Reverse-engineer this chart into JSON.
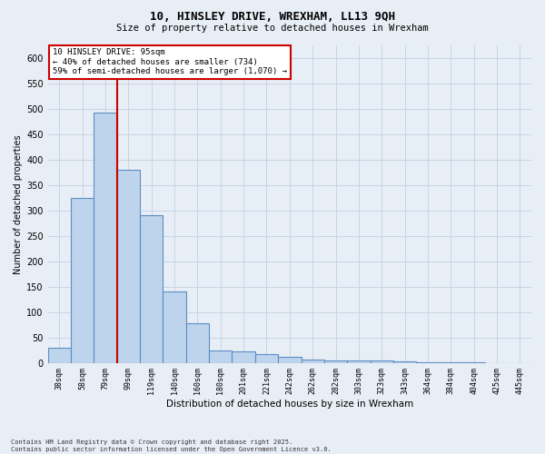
{
  "title1": "10, HINSLEY DRIVE, WREXHAM, LL13 9QH",
  "title2": "Size of property relative to detached houses in Wrexham",
  "xlabel": "Distribution of detached houses by size in Wrexham",
  "ylabel": "Number of detached properties",
  "categories": [
    "38sqm",
    "58sqm",
    "79sqm",
    "99sqm",
    "119sqm",
    "140sqm",
    "160sqm",
    "180sqm",
    "201sqm",
    "221sqm",
    "242sqm",
    "262sqm",
    "282sqm",
    "303sqm",
    "323sqm",
    "343sqm",
    "364sqm",
    "384sqm",
    "404sqm",
    "425sqm",
    "445sqm"
  ],
  "values": [
    30,
    325,
    493,
    380,
    290,
    140,
    78,
    25,
    22,
    17,
    12,
    7,
    5,
    4,
    4,
    2,
    1,
    1,
    1,
    0,
    0
  ],
  "bar_color": "#bed3ec",
  "bar_edge_color": "#5b8ec4",
  "grid_color": "#c8d4e4",
  "bg_color": "#e8eef6",
  "red_line_x": 2.5,
  "annotation_text": "10 HINSLEY DRIVE: 95sqm\n← 40% of detached houses are smaller (734)\n59% of semi-detached houses are larger (1,070) →",
  "annotation_box_color": "#ffffff",
  "annotation_border_color": "#cc0000",
  "footer": "Contains HM Land Registry data © Crown copyright and database right 2025.\nContains public sector information licensed under the Open Government Licence v3.0.",
  "ylim": [
    0,
    625
  ],
  "yticks": [
    0,
    50,
    100,
    150,
    200,
    250,
    300,
    350,
    400,
    450,
    500,
    550,
    600
  ]
}
